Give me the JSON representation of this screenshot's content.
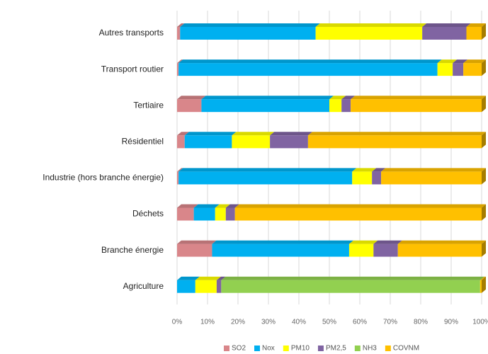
{
  "chart_data": {
    "type": "stacked-barh",
    "categories": [
      "Autres transports",
      "Transport routier",
      "Tertiaire",
      "Résidentiel",
      "Industrie (hors branche énergie)",
      "Déchets",
      "Branche énergie",
      "Agriculture"
    ],
    "series": [
      {
        "name": "SO2",
        "color": "#d9868a",
        "values": [
          1,
          0.5,
          8,
          2.5,
          0.5,
          5.5,
          11.5,
          0
        ]
      },
      {
        "name": "Nox",
        "color": "#00b0f0",
        "values": [
          44.5,
          85,
          42,
          15.5,
          57,
          7,
          45,
          6
        ]
      },
      {
        "name": "PM10",
        "color": "#ffff00",
        "values": [
          35,
          5,
          4,
          12.5,
          6.5,
          3.5,
          8,
          7
        ]
      },
      {
        "name": "PM2,5",
        "color": "#8064a2",
        "values": [
          14.5,
          3.5,
          3,
          12.5,
          3,
          3,
          8,
          1.5
        ]
      },
      {
        "name": "NH3",
        "color": "#92d050",
        "values": [
          0,
          0,
          0,
          0,
          0,
          0,
          0,
          85
        ]
      },
      {
        "name": "COVNM",
        "color": "#ffc000",
        "values": [
          5,
          6,
          43,
          57,
          33,
          81,
          27.5,
          0.5
        ]
      }
    ],
    "xlim": [
      0,
      100
    ],
    "xticks": [
      {
        "value": 0,
        "label": "0%"
      },
      {
        "value": 10,
        "label": "10%"
      },
      {
        "value": 20,
        "label": "20%"
      },
      {
        "value": 30,
        "label": "30%"
      },
      {
        "value": 40,
        "label": "40%"
      },
      {
        "value": 50,
        "label": "50%"
      },
      {
        "value": 60,
        "label": "60%"
      },
      {
        "value": 70,
        "label": "70%"
      },
      {
        "value": 80,
        "label": "80%"
      },
      {
        "value": 90,
        "label": "90%"
      },
      {
        "value": 100,
        "label": "100%"
      }
    ],
    "grid": true,
    "legend": "bottom"
  }
}
